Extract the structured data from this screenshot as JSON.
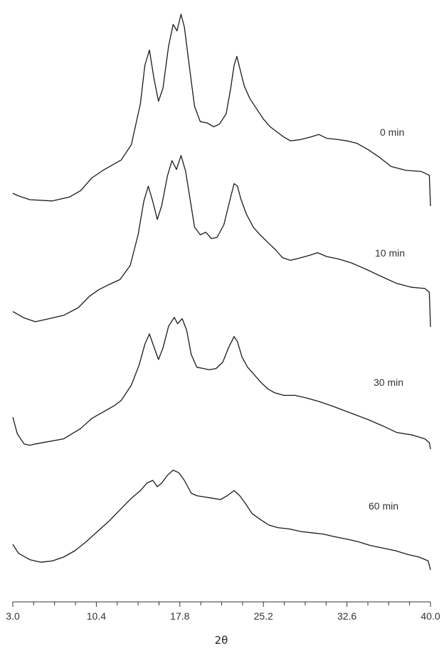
{
  "chart_data": {
    "type": "line",
    "xlabel": "2θ",
    "xlim": [
      3.0,
      40.0
    ],
    "x_ticks": [
      "3.0",
      "10.4",
      "17.8",
      "25.2",
      "32.6",
      "40.0"
    ],
    "x_tick_values": [
      3.0,
      10.4,
      17.8,
      25.2,
      32.6,
      40.0
    ],
    "minor_tick_step": 1.85,
    "grid": false,
    "y_axis_shown": false,
    "series": [
      {
        "name": "0 min",
        "points": [
          [
            3.0,
            10
          ],
          [
            3.5,
            8
          ],
          [
            4.5,
            5
          ],
          [
            6.5,
            4
          ],
          [
            8.0,
            7
          ],
          [
            9.0,
            12
          ],
          [
            10.0,
            22
          ],
          [
            11.0,
            28
          ],
          [
            12.0,
            33
          ],
          [
            12.6,
            36
          ],
          [
            13.5,
            48
          ],
          [
            14.3,
            80
          ],
          [
            14.7,
            110
          ],
          [
            15.1,
            122
          ],
          [
            15.5,
            100
          ],
          [
            15.9,
            82
          ],
          [
            16.3,
            92
          ],
          [
            16.8,
            125
          ],
          [
            17.2,
            142
          ],
          [
            17.55,
            137
          ],
          [
            17.9,
            150
          ],
          [
            18.2,
            140
          ],
          [
            18.6,
            112
          ],
          [
            19.1,
            78
          ],
          [
            19.6,
            66
          ],
          [
            20.2,
            65
          ],
          [
            20.8,
            62
          ],
          [
            21.3,
            64
          ],
          [
            21.9,
            72
          ],
          [
            22.3,
            92
          ],
          [
            22.6,
            110
          ],
          [
            22.85,
            117
          ],
          [
            23.1,
            108
          ],
          [
            23.5,
            94
          ],
          [
            24.0,
            84
          ],
          [
            24.6,
            76
          ],
          [
            25.2,
            68
          ],
          [
            25.8,
            62
          ],
          [
            26.4,
            58
          ],
          [
            27.0,
            54
          ],
          [
            27.6,
            51
          ],
          [
            28.5,
            52
          ],
          [
            29.4,
            54
          ],
          [
            30.1,
            56
          ],
          [
            30.8,
            53
          ],
          [
            31.8,
            52
          ],
          [
            32.6,
            51
          ],
          [
            33.5,
            49
          ],
          [
            34.5,
            44
          ],
          [
            35.5,
            38
          ],
          [
            36.5,
            31
          ],
          [
            37.8,
            28
          ],
          [
            39.2,
            27
          ],
          [
            39.9,
            24
          ],
          [
            40.0,
            0
          ]
        ]
      },
      {
        "name": "10 min",
        "points": [
          [
            3.0,
            12
          ],
          [
            4.0,
            7
          ],
          [
            5.0,
            4
          ],
          [
            6.0,
            6
          ],
          [
            7.5,
            9
          ],
          [
            8.8,
            15
          ],
          [
            9.8,
            24
          ],
          [
            10.6,
            29
          ],
          [
            11.5,
            33
          ],
          [
            12.5,
            37
          ],
          [
            13.4,
            48
          ],
          [
            14.1,
            72
          ],
          [
            14.6,
            98
          ],
          [
            15.0,
            110
          ],
          [
            15.4,
            98
          ],
          [
            15.8,
            84
          ],
          [
            16.2,
            95
          ],
          [
            16.7,
            118
          ],
          [
            17.1,
            130
          ],
          [
            17.5,
            123
          ],
          [
            17.9,
            134
          ],
          [
            18.3,
            122
          ],
          [
            18.7,
            100
          ],
          [
            19.1,
            78
          ],
          [
            19.6,
            72
          ],
          [
            20.1,
            74
          ],
          [
            20.6,
            69
          ],
          [
            21.1,
            70
          ],
          [
            21.7,
            80
          ],
          [
            22.2,
            98
          ],
          [
            22.6,
            112
          ],
          [
            22.9,
            110
          ],
          [
            23.2,
            100
          ],
          [
            23.7,
            88
          ],
          [
            24.3,
            78
          ],
          [
            24.9,
            72
          ],
          [
            25.6,
            66
          ],
          [
            26.3,
            60
          ],
          [
            26.9,
            54
          ],
          [
            27.6,
            52
          ],
          [
            28.5,
            54
          ],
          [
            29.3,
            56
          ],
          [
            30.0,
            58
          ],
          [
            30.8,
            55
          ],
          [
            31.9,
            53
          ],
          [
            33.0,
            50
          ],
          [
            34.3,
            45
          ],
          [
            35.5,
            40
          ],
          [
            37.0,
            34
          ],
          [
            38.3,
            31
          ],
          [
            39.5,
            30
          ],
          [
            39.9,
            27
          ],
          [
            40.0,
            0
          ]
        ]
      },
      {
        "name": "30 min",
        "points": [
          [
            3.0,
            25
          ],
          [
            3.4,
            12
          ],
          [
            4.0,
            4
          ],
          [
            4.5,
            3
          ],
          [
            5.0,
            4
          ],
          [
            7.5,
            8
          ],
          [
            9.0,
            16
          ],
          [
            10.0,
            24
          ],
          [
            11.0,
            29
          ],
          [
            12.0,
            34
          ],
          [
            12.6,
            38
          ],
          [
            13.5,
            50
          ],
          [
            14.2,
            66
          ],
          [
            14.7,
            82
          ],
          [
            15.1,
            90
          ],
          [
            15.5,
            80
          ],
          [
            15.9,
            70
          ],
          [
            16.3,
            79
          ],
          [
            16.8,
            96
          ],
          [
            17.3,
            103
          ],
          [
            17.6,
            98
          ],
          [
            18.0,
            102
          ],
          [
            18.4,
            93
          ],
          [
            18.8,
            74
          ],
          [
            19.3,
            64
          ],
          [
            19.9,
            63
          ],
          [
            20.4,
            62
          ],
          [
            21.0,
            63
          ],
          [
            21.6,
            68
          ],
          [
            22.1,
            79
          ],
          [
            22.6,
            88
          ],
          [
            22.9,
            84
          ],
          [
            23.3,
            72
          ],
          [
            23.8,
            64
          ],
          [
            24.4,
            58
          ],
          [
            25.0,
            52
          ],
          [
            25.6,
            47
          ],
          [
            26.2,
            44
          ],
          [
            27.0,
            42
          ],
          [
            28.0,
            42
          ],
          [
            29.0,
            40
          ],
          [
            30.2,
            37
          ],
          [
            31.5,
            33
          ],
          [
            33.0,
            28
          ],
          [
            34.5,
            23
          ],
          [
            35.8,
            18
          ],
          [
            37.0,
            13
          ],
          [
            38.4,
            11
          ],
          [
            39.5,
            8
          ],
          [
            39.9,
            5
          ],
          [
            40.0,
            0
          ]
        ]
      },
      {
        "name": "60 min",
        "points": [
          [
            3.0,
            20
          ],
          [
            3.5,
            13
          ],
          [
            4.5,
            8
          ],
          [
            5.5,
            6
          ],
          [
            6.5,
            7
          ],
          [
            7.5,
            10
          ],
          [
            8.5,
            15
          ],
          [
            9.5,
            22
          ],
          [
            10.5,
            30
          ],
          [
            11.5,
            38
          ],
          [
            12.5,
            47
          ],
          [
            13.5,
            56
          ],
          [
            14.3,
            62
          ],
          [
            14.9,
            68
          ],
          [
            15.4,
            70
          ],
          [
            15.8,
            65
          ],
          [
            16.2,
            68
          ],
          [
            16.7,
            74
          ],
          [
            17.2,
            78
          ],
          [
            17.7,
            76
          ],
          [
            18.2,
            70
          ],
          [
            18.8,
            60
          ],
          [
            19.3,
            58
          ],
          [
            20.0,
            57
          ],
          [
            20.7,
            56
          ],
          [
            21.4,
            55
          ],
          [
            22.0,
            58
          ],
          [
            22.6,
            62
          ],
          [
            23.1,
            58
          ],
          [
            23.6,
            52
          ],
          [
            24.2,
            44
          ],
          [
            25.0,
            39
          ],
          [
            25.7,
            35
          ],
          [
            26.5,
            33
          ],
          [
            27.5,
            32
          ],
          [
            28.5,
            30
          ],
          [
            29.5,
            29
          ],
          [
            30.5,
            28
          ],
          [
            31.5,
            26
          ],
          [
            32.6,
            24
          ],
          [
            33.6,
            22
          ],
          [
            34.7,
            19
          ],
          [
            35.8,
            17
          ],
          [
            36.9,
            15
          ],
          [
            38.0,
            12
          ],
          [
            39.0,
            10
          ],
          [
            39.8,
            7
          ],
          [
            40.0,
            0
          ]
        ]
      }
    ]
  }
}
